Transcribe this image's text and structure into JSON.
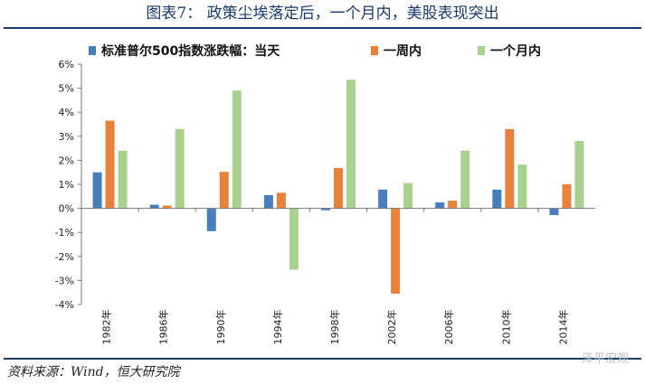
{
  "title": "图表7：  政策尘埃落定后，一个月内，美股表现突出",
  "source": "资料来源：Wind，恒大研究院",
  "watermark": "泽平宏观",
  "chart_data": {
    "type": "bar",
    "categories": [
      "1982年",
      "1986年",
      "1990年",
      "1994年",
      "1998年",
      "2002年",
      "2006年",
      "2010年",
      "2014年"
    ],
    "series": [
      {
        "name": "标准普尔500指数涨跌幅：当天",
        "color": "#4a7ebb",
        "values": [
          1.5,
          0.15,
          -0.95,
          0.55,
          -0.08,
          0.78,
          0.25,
          0.78,
          -0.28
        ]
      },
      {
        "name": "一周内",
        "color": "#e8823a",
        "values": [
          3.65,
          0.12,
          1.52,
          0.65,
          1.68,
          -3.55,
          0.32,
          3.3,
          1.0
        ]
      },
      {
        "name": "一个月内",
        "color": "#a9d18e",
        "values": [
          2.4,
          3.3,
          4.9,
          -2.55,
          5.35,
          1.05,
          2.4,
          1.82,
          2.8
        ]
      }
    ],
    "yticks": [
      "6%",
      "5%",
      "4%",
      "3%",
      "2%",
      "1%",
      "0%",
      "-1%",
      "-2%",
      "-3%",
      "-4%"
    ],
    "ylim": [
      -4,
      6
    ],
    "legend_position": "top",
    "grid": false
  }
}
